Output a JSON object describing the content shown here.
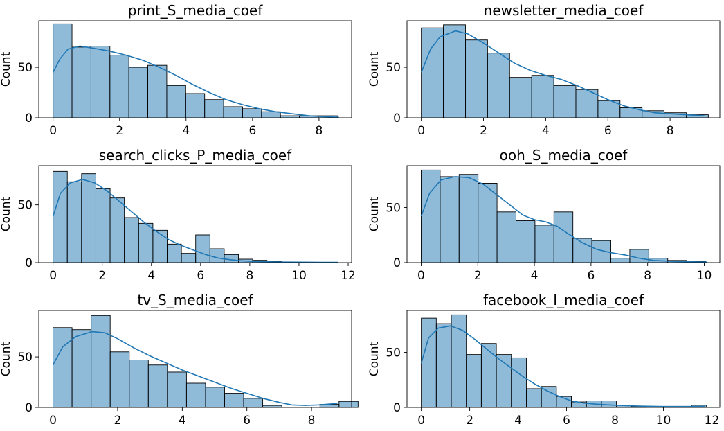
{
  "chart_data": [
    {
      "type": "histogram",
      "title": "print_S_media_coef",
      "ylabel": "Count",
      "xlim": [
        -0.43,
        8.98
      ],
      "ylim": [
        0,
        96
      ],
      "xticks": [
        0,
        2,
        4,
        6,
        8
      ],
      "yticks": [
        0,
        50
      ],
      "bin_width": 0.57,
      "bin_start": 0,
      "counts": [
        93,
        70,
        71,
        62,
        50,
        52,
        32,
        24,
        18,
        11,
        9,
        6,
        2,
        2,
        2
      ],
      "kde": [
        [
          0,
          45
        ],
        [
          0.2,
          58
        ],
        [
          0.45,
          68
        ],
        [
          0.8,
          71
        ],
        [
          1.2,
          69
        ],
        [
          1.7,
          66
        ],
        [
          2.2,
          62
        ],
        [
          2.7,
          57
        ],
        [
          3.2,
          50
        ],
        [
          3.7,
          42
        ],
        [
          4.2,
          33
        ],
        [
          4.7,
          25
        ],
        [
          5.2,
          18
        ],
        [
          5.7,
          13
        ],
        [
          6.2,
          9
        ],
        [
          6.7,
          6
        ],
        [
          7.2,
          4
        ],
        [
          7.7,
          2
        ],
        [
          8.2,
          1
        ],
        [
          8.6,
          0.5
        ]
      ],
      "grid": false,
      "color": "#1f77b4"
    },
    {
      "type": "histogram",
      "title": "newsletter_media_coef",
      "ylabel": "Count",
      "xlim": [
        -0.46,
        9.6
      ],
      "ylim": [
        0,
        96
      ],
      "xticks": [
        0,
        2,
        4,
        6,
        8
      ],
      "yticks": [
        0,
        50
      ],
      "bin_width": 0.71,
      "bin_start": 0,
      "counts": [
        89,
        92,
        77,
        64,
        40,
        42,
        32,
        28,
        17,
        10,
        7,
        5,
        3
      ],
      "kde": [
        [
          0,
          45
        ],
        [
          0.3,
          68
        ],
        [
          0.6,
          80
        ],
        [
          1.1,
          86
        ],
        [
          1.5,
          83
        ],
        [
          2.0,
          74
        ],
        [
          2.5,
          64
        ],
        [
          3.0,
          54
        ],
        [
          3.5,
          47
        ],
        [
          4.0,
          42
        ],
        [
          4.5,
          38
        ],
        [
          5.0,
          32
        ],
        [
          5.5,
          25
        ],
        [
          6.0,
          18
        ],
        [
          6.5,
          12
        ],
        [
          7.0,
          8
        ],
        [
          7.5,
          5
        ],
        [
          8.0,
          4
        ],
        [
          8.5,
          3
        ],
        [
          9.1,
          2
        ]
      ],
      "grid": false,
      "color": "#1f77b4"
    },
    {
      "type": "histogram",
      "title": "search_clicks_P_media_coef",
      "ylabel": "Count",
      "xlim": [
        -0.58,
        12.14
      ],
      "ylim": [
        0,
        84
      ],
      "xticks": [
        0,
        2,
        4,
        6,
        8,
        10,
        12
      ],
      "yticks": [
        0,
        50
      ],
      "bin_width": 0.58,
      "bin_start": 0,
      "counts": [
        79,
        70,
        77,
        64,
        56,
        39,
        34,
        28,
        16,
        8,
        24,
        12,
        7,
        3,
        2,
        1,
        0,
        0,
        0,
        0
      ],
      "kde": [
        [
          0,
          40
        ],
        [
          0.3,
          60
        ],
        [
          0.7,
          69
        ],
        [
          1.2,
          72
        ],
        [
          1.7,
          69
        ],
        [
          2.2,
          62
        ],
        [
          2.7,
          53
        ],
        [
          3.2,
          44
        ],
        [
          3.7,
          35
        ],
        [
          4.2,
          27
        ],
        [
          4.7,
          20
        ],
        [
          5.2,
          15
        ],
        [
          5.7,
          11
        ],
        [
          6.2,
          7
        ],
        [
          6.7,
          4
        ],
        [
          7.2,
          2.5
        ],
        [
          7.7,
          1.5
        ],
        [
          8.2,
          1
        ],
        [
          9,
          0.6
        ],
        [
          10,
          0.4
        ],
        [
          11,
          0.3
        ],
        [
          11.6,
          0.3
        ]
      ],
      "grid": false,
      "color": "#1f77b4"
    },
    {
      "type": "histogram",
      "title": "ooh_S_media_coef",
      "ylabel": "Count",
      "xlim": [
        -0.5,
        10.55
      ],
      "ylim": [
        0,
        88
      ],
      "xticks": [
        0,
        2,
        4,
        6,
        8,
        10
      ],
      "yticks": [
        0,
        50
      ],
      "bin_width": 0.67,
      "bin_start": 0,
      "counts": [
        84,
        78,
        80,
        72,
        46,
        38,
        34,
        46,
        22,
        20,
        4,
        12,
        4,
        2,
        1
      ],
      "kde": [
        [
          0,
          42
        ],
        [
          0.3,
          63
        ],
        [
          0.7,
          75
        ],
        [
          1.2,
          78
        ],
        [
          1.7,
          77
        ],
        [
          2.2,
          71
        ],
        [
          2.7,
          61
        ],
        [
          3.2,
          51
        ],
        [
          3.6,
          43
        ],
        [
          4.0,
          39
        ],
        [
          4.4,
          37
        ],
        [
          4.8,
          33
        ],
        [
          5.2,
          26
        ],
        [
          5.7,
          18
        ],
        [
          6.2,
          12
        ],
        [
          6.7,
          9
        ],
        [
          7.2,
          7
        ],
        [
          7.7,
          4
        ],
        [
          8.2,
          2
        ],
        [
          9,
          1
        ],
        [
          10.1,
          0.5
        ]
      ],
      "grid": false,
      "color": "#1f77b4"
    },
    {
      "type": "histogram",
      "title": "tv_S_media_coef",
      "ylabel": "Count",
      "xlim": [
        -0.44,
        9.24
      ],
      "ylim": [
        0,
        96
      ],
      "xticks": [
        0,
        2,
        4,
        6,
        8
      ],
      "yticks": [
        0,
        50
      ],
      "bin_width": 0.59,
      "bin_start": 0,
      "counts": [
        79,
        77,
        91,
        55,
        47,
        42,
        35,
        24,
        20,
        14,
        9,
        2,
        0,
        0,
        3,
        6
      ],
      "kde": [
        [
          0,
          42
        ],
        [
          0.3,
          60
        ],
        [
          0.7,
          70
        ],
        [
          1.2,
          75
        ],
        [
          1.6,
          74
        ],
        [
          2.0,
          68
        ],
        [
          2.5,
          59
        ],
        [
          3.0,
          51
        ],
        [
          3.5,
          44
        ],
        [
          4.0,
          37
        ],
        [
          4.5,
          31
        ],
        [
          5.0,
          25
        ],
        [
          5.5,
          19
        ],
        [
          6.0,
          14
        ],
        [
          6.5,
          9
        ],
        [
          7.0,
          5
        ],
        [
          7.4,
          2.5
        ],
        [
          7.8,
          2
        ],
        [
          8.2,
          2.5
        ],
        [
          8.6,
          3.5
        ],
        [
          8.8,
          4
        ]
      ],
      "grid": false,
      "color": "#1f77b4"
    },
    {
      "type": "histogram",
      "title": "facebook_I_media_coef",
      "ylabel": "Count",
      "xlim": [
        -0.59,
        12.33
      ],
      "ylim": [
        0,
        88
      ],
      "xticks": [
        0,
        2,
        4,
        6,
        8,
        10,
        12
      ],
      "yticks": [
        0,
        50
      ],
      "bin_width": 0.62,
      "bin_start": 0,
      "counts": [
        81,
        76,
        84,
        48,
        58,
        48,
        45,
        17,
        19,
        10,
        5,
        6,
        6,
        2,
        1,
        0,
        1,
        1,
        2
      ],
      "kde": [
        [
          0,
          40
        ],
        [
          0.3,
          63
        ],
        [
          0.7,
          72
        ],
        [
          1.2,
          74
        ],
        [
          1.7,
          70
        ],
        [
          2.2,
          62
        ],
        [
          2.7,
          53
        ],
        [
          3.2,
          44
        ],
        [
          3.7,
          36
        ],
        [
          4.2,
          28
        ],
        [
          4.7,
          21
        ],
        [
          5.2,
          15
        ],
        [
          5.7,
          10
        ],
        [
          6.2,
          6
        ],
        [
          6.7,
          4
        ],
        [
          7.2,
          3
        ],
        [
          8,
          2
        ],
        [
          9,
          1.2
        ],
        [
          10,
          0.8
        ],
        [
          11,
          0.8
        ],
        [
          11.7,
          0.8
        ]
      ],
      "grid": false,
      "color": "#1f77b4"
    }
  ]
}
